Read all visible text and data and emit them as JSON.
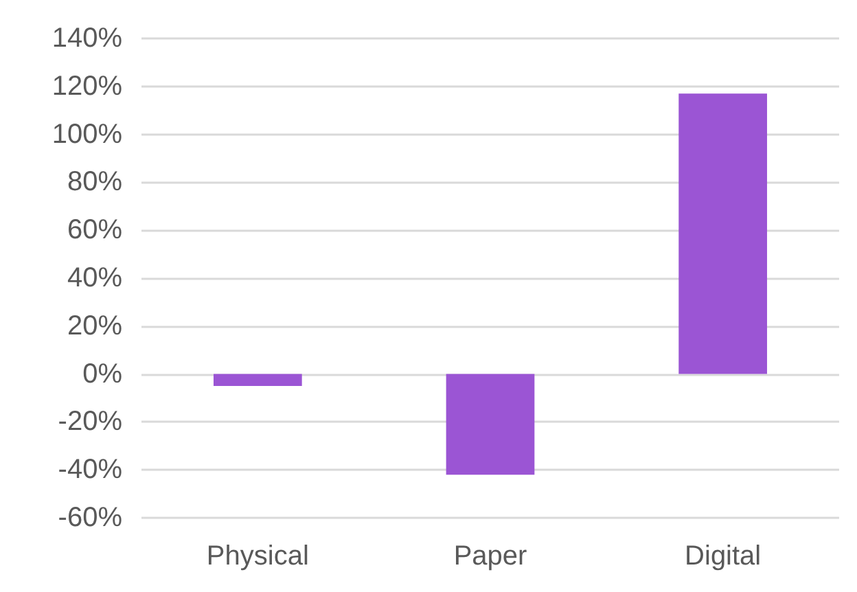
{
  "chart_data": {
    "type": "bar",
    "categories": [
      "Physical",
      "Paper",
      "Digital"
    ],
    "values": [
      -5,
      -42,
      117
    ],
    "color": "#9b55d4",
    "ylim": [
      -60,
      140
    ],
    "yticks": [
      {
        "value": -60,
        "label": "-60%"
      },
      {
        "value": -40,
        "label": "-40%"
      },
      {
        "value": -20,
        "label": "-20%"
      },
      {
        "value": 0,
        "label": "0%"
      },
      {
        "value": 20,
        "label": "20%"
      },
      {
        "value": 40,
        "label": "40%"
      },
      {
        "value": 60,
        "label": "60%"
      },
      {
        "value": 80,
        "label": "80%"
      },
      {
        "value": 100,
        "label": "100%"
      },
      {
        "value": 120,
        "label": "120%"
      },
      {
        "value": 140,
        "label": "140%"
      }
    ],
    "grid": "y"
  }
}
